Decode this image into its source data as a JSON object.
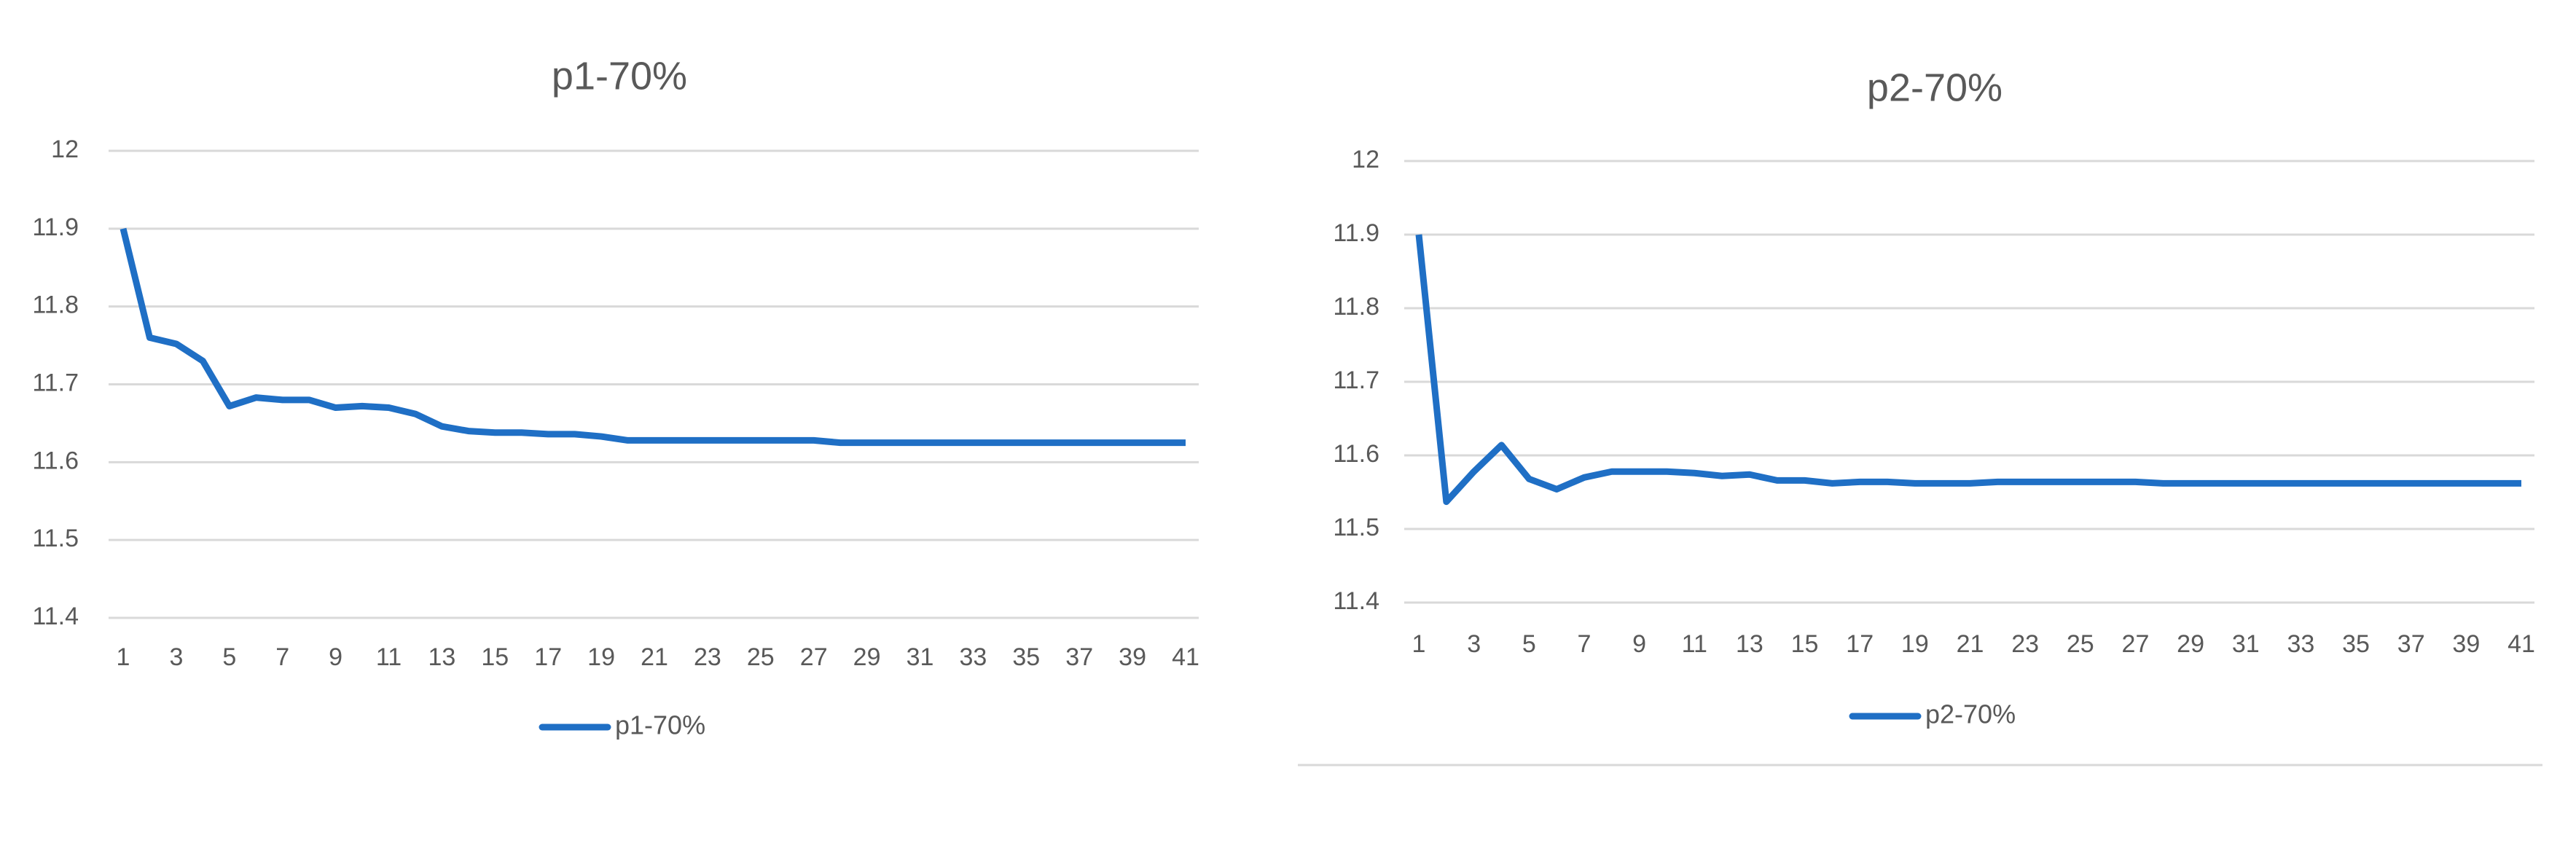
{
  "chart_data": [
    {
      "type": "line",
      "title": "p1-70%",
      "categories": [
        1,
        null,
        3,
        null,
        5,
        null,
        7,
        null,
        9,
        null,
        11,
        null,
        13,
        null,
        15,
        null,
        17,
        null,
        19,
        null,
        21,
        null,
        23,
        null,
        25,
        null,
        27,
        null,
        29,
        null,
        31,
        null,
        33,
        null,
        35,
        null,
        37,
        null,
        39,
        null,
        41
      ],
      "series": [
        {
          "name": "p1-70%",
          "color": "#1f6fc5",
          "values": [
            11.9,
            11.76,
            11.752,
            11.73,
            11.672,
            11.683,
            11.68,
            11.68,
            11.67,
            11.672,
            11.67,
            11.662,
            11.646,
            11.64,
            11.638,
            11.638,
            11.636,
            11.636,
            11.633,
            11.628,
            11.628,
            11.628,
            11.628,
            11.628,
            11.628,
            11.628,
            11.628,
            11.625,
            11.625,
            11.625,
            11.625,
            11.625,
            11.625,
            11.625,
            11.625,
            11.625,
            11.625,
            11.625,
            11.625,
            11.625,
            11.625
          ]
        }
      ],
      "ylim": [
        11.4,
        12
      ],
      "yticks": [
        11.4,
        11.5,
        11.6,
        11.7,
        11.8,
        11.9,
        12
      ],
      "grid": true,
      "legend": "bottom"
    },
    {
      "type": "line",
      "title": "p2-70%",
      "categories": [
        1,
        null,
        3,
        null,
        5,
        null,
        7,
        null,
        9,
        null,
        11,
        null,
        13,
        null,
        15,
        null,
        17,
        null,
        19,
        null,
        21,
        null,
        23,
        null,
        25,
        null,
        27,
        null,
        29,
        null,
        31,
        null,
        33,
        null,
        35,
        null,
        37,
        null,
        39,
        null,
        41
      ],
      "series": [
        {
          "name": "p2-70%",
          "color": "#1f6fc5",
          "values": [
            11.9,
            11.537,
            11.578,
            11.614,
            11.568,
            11.554,
            11.57,
            11.578,
            11.578,
            11.578,
            11.576,
            11.572,
            11.574,
            11.566,
            11.566,
            11.562,
            11.564,
            11.564,
            11.562,
            11.562,
            11.562,
            11.564,
            11.564,
            11.564,
            11.564,
            11.564,
            11.564,
            11.562,
            11.562,
            11.562,
            11.562,
            11.562,
            11.562,
            11.562,
            11.562,
            11.562,
            11.562,
            11.562,
            11.562,
            11.562,
            11.562
          ]
        }
      ],
      "ylim": [
        11.4,
        12
      ],
      "yticks": [
        11.4,
        11.5,
        11.6,
        11.7,
        11.8,
        11.9,
        12
      ],
      "grid": true,
      "legend": "bottom"
    }
  ]
}
